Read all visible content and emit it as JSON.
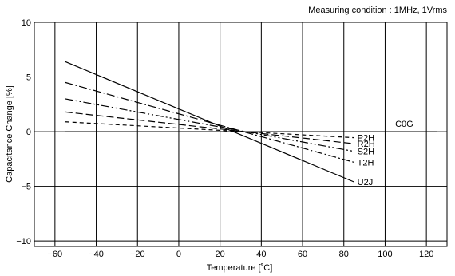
{
  "chart_data": {
    "type": "line",
    "title": "Measuring condition : 1MHz, 1Vrms",
    "xlabel": "Temperature [˚C]",
    "ylabel": "Capacitance Change [%]",
    "xlim": [
      -70,
      130
    ],
    "ylim": [
      -10.5,
      10
    ],
    "x_ticks": [
      -60,
      -40,
      -20,
      0,
      20,
      40,
      60,
      80,
      100,
      120
    ],
    "y_ticks": [
      10,
      5,
      0,
      -5,
      -10
    ],
    "x_tick_labels": [
      "−60",
      "−40",
      "−20",
      "0",
      "20",
      "40",
      "60",
      "80",
      "100",
      "120"
    ],
    "y_tick_labels": [
      "10",
      "5",
      "0",
      "−5",
      "−10"
    ],
    "grid": true,
    "series": [
      {
        "name": "C0G",
        "style": "solid",
        "x": [
          -55,
          125
        ],
        "y": [
          0,
          0
        ]
      },
      {
        "name": "P2H",
        "style": "dashed",
        "x": [
          -55,
          85
        ],
        "y": [
          0.9,
          -0.55
        ]
      },
      {
        "name": "R2H",
        "style": "dashed-long",
        "x": [
          -55,
          85
        ],
        "y": [
          1.8,
          -1.1
        ]
      },
      {
        "name": "S2H",
        "style": "dash-dot-dot",
        "x": [
          -55,
          85
        ],
        "y": [
          3.0,
          -1.8
        ]
      },
      {
        "name": "T2H",
        "style": "dash-dot",
        "x": [
          -55,
          85
        ],
        "y": [
          4.5,
          -2.8
        ]
      },
      {
        "name": "U2J",
        "style": "solid",
        "x": [
          -55,
          85
        ],
        "y": [
          6.4,
          -4.6
        ]
      }
    ]
  }
}
